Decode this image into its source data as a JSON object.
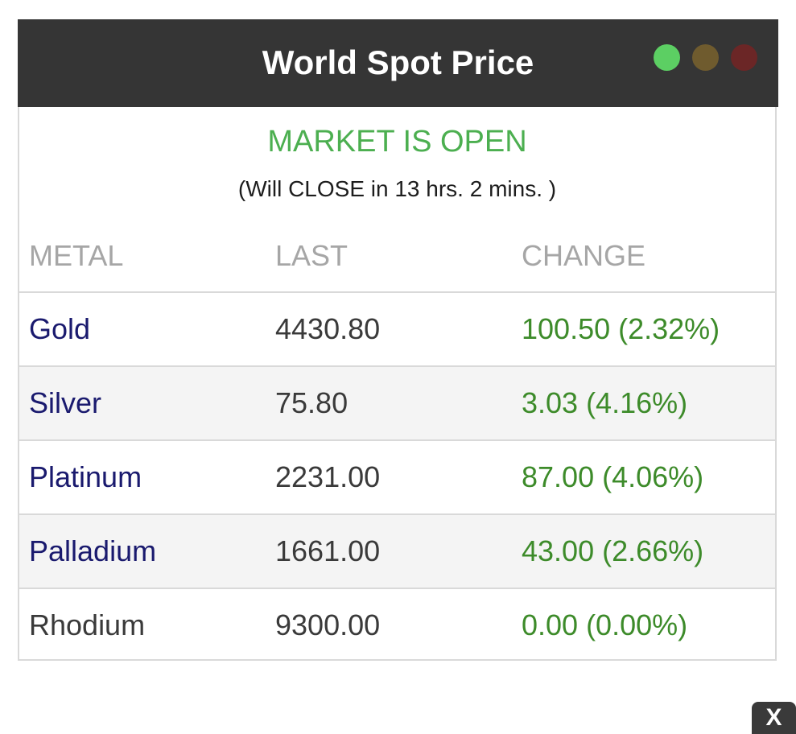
{
  "header": {
    "title": "World Spot Price"
  },
  "status": {
    "text": "MARKET IS OPEN",
    "note": "(Will CLOSE in 13 hrs. 2 mins. )",
    "color": "#4caf50"
  },
  "columns": {
    "metal": "METAL",
    "last": "LAST",
    "change": "CHANGE"
  },
  "rows": [
    {
      "metal": "Gold",
      "last": "4430.80",
      "change": "100.50 (2.32%)"
    },
    {
      "metal": "Silver",
      "last": "75.80",
      "change": "3.03 (4.16%)"
    },
    {
      "metal": "Platinum",
      "last": "2231.00",
      "change": "87.00 (4.06%)"
    },
    {
      "metal": "Palladium",
      "last": "1661.00",
      "change": "43.00 (2.66%)"
    },
    {
      "metal": "Rhodium",
      "last": "9300.00",
      "change": "0.00 (0.00%)"
    }
  ],
  "colors": {
    "header_bg": "#353535",
    "metal_link": "#1a1a6e",
    "metal_plain": "#3a3a3a",
    "change_positive": "#3d8b2a",
    "dot_green": "#5ccf63",
    "dot_olive": "#6f5b2e",
    "dot_red": "#6b2626"
  },
  "close_button": {
    "label": "X"
  }
}
